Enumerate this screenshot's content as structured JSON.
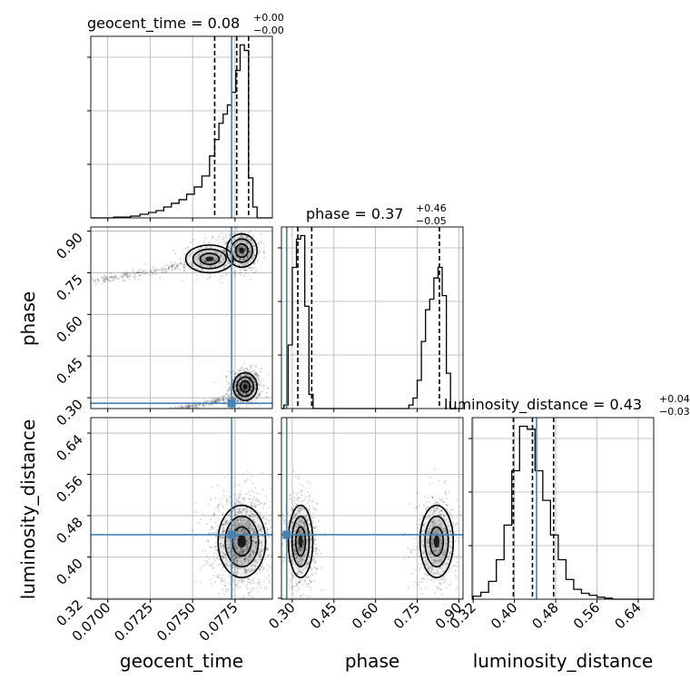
{
  "colors": {
    "truth": "#4682b4",
    "hist": "#000000",
    "quantile": "#000000",
    "grid": "#b0b0b0"
  },
  "chart_data": {
    "type": "corner",
    "parameters": [
      "geocent_time",
      "phase",
      "luminosity_distance"
    ],
    "titles": [
      {
        "label": "geocent_time = 0.08",
        "plus": "+0.00",
        "minus": "−0.00"
      },
      {
        "label": "phase = 0.37",
        "plus": "+0.46",
        "minus": "−0.05"
      },
      {
        "label": "luminosity_distance = 0.43",
        "plus": "+0.04",
        "minus": "−0.03"
      }
    ],
    "ranges": {
      "geocent_time": [
        0.069,
        0.0797
      ],
      "phase": [
        0.261,
        0.915
      ],
      "luminosity_distance": [
        0.318,
        0.67
      ]
    },
    "ticks": {
      "geocent_time": [
        {
          "value": 0.07,
          "label": "0.0700"
        },
        {
          "value": 0.0725,
          "label": "0.0725"
        },
        {
          "value": 0.075,
          "label": "0.0750"
        },
        {
          "value": 0.0775,
          "label": "0.0775"
        }
      ],
      "phase": [
        {
          "value": 0.3,
          "label": "0.30"
        },
        {
          "value": 0.45,
          "label": "0.45"
        },
        {
          "value": 0.6,
          "label": "0.60"
        },
        {
          "value": 0.75,
          "label": "0.75"
        },
        {
          "value": 0.9,
          "label": "0.90"
        }
      ],
      "luminosity_distance": [
        {
          "value": 0.32,
          "label": "0.32"
        },
        {
          "value": 0.4,
          "label": "0.40"
        },
        {
          "value": 0.48,
          "label": "0.48"
        },
        {
          "value": 0.56,
          "label": "0.56"
        },
        {
          "value": 0.64,
          "label": "0.64"
        }
      ]
    },
    "truths": {
      "geocent_time": 0.0773,
      "phase": 0.28,
      "luminosity_distance": 0.443
    },
    "quantiles": {
      "geocent_time": [
        0.0763,
        0.0776,
        0.0783
      ],
      "phase": [
        0.32,
        0.37,
        0.83
      ],
      "luminosity_distance": [
        0.398,
        0.435,
        0.476
      ]
    },
    "histograms": {
      "geocent_time": {
        "edges": [
          0.069,
          0.07035,
          0.07135,
          0.0719,
          0.0724,
          0.07285,
          0.0733,
          0.07375,
          0.0742,
          0.07465,
          0.0751,
          0.07555,
          0.076,
          0.0763,
          0.07655,
          0.0768,
          0.07705,
          0.0773,
          0.07755,
          0.0778,
          0.07805,
          0.0783,
          0.07855,
          0.0788,
          0.0797
        ],
        "counts": [
          0,
          2,
          5,
          10,
          15,
          20,
          30,
          40,
          50,
          65,
          85,
          115,
          170,
          215,
          260,
          285,
          310,
          345,
          405,
          475,
          460,
          110,
          30,
          0
        ]
      },
      "phase": {
        "edges": [
          0.261,
          0.27,
          0.285,
          0.3,
          0.315,
          0.33,
          0.345,
          0.36,
          0.375,
          0.39,
          0.72,
          0.735,
          0.75,
          0.765,
          0.78,
          0.795,
          0.81,
          0.825,
          0.84,
          0.855,
          0.87,
          0.915
        ],
        "counts": [
          0,
          5,
          90,
          200,
          240,
          245,
          145,
          20,
          0,
          0,
          5,
          15,
          40,
          95,
          140,
          155,
          185,
          200,
          160,
          50,
          0
        ]
      },
      "luminosity_distance": {
        "edges": [
          0.318,
          0.32,
          0.335,
          0.35,
          0.365,
          0.38,
          0.395,
          0.41,
          0.425,
          0.44,
          0.455,
          0.47,
          0.485,
          0.5,
          0.515,
          0.53,
          0.545,
          0.56,
          0.575,
          0.59,
          0.605,
          0.62,
          0.67
        ],
        "counts": [
          0,
          3,
          7,
          18,
          40,
          75,
          130,
          175,
          172,
          130,
          100,
          65,
          40,
          20,
          10,
          6,
          4,
          2,
          1,
          0,
          0,
          0
        ]
      }
    },
    "density_modes": {
      "phase_vs_geocent_time": [
        {
          "x": 0.0781,
          "y": 0.34,
          "sx": 0.00035,
          "sy": 0.025,
          "weight": 0.55
        },
        {
          "x": 0.0779,
          "y": 0.83,
          "sx": 0.00045,
          "sy": 0.03,
          "weight": 0.35
        },
        {
          "x": 0.076,
          "y": 0.8,
          "sx": 0.0007,
          "sy": 0.025,
          "weight": 0.1
        }
      ],
      "luminosity_distance_vs_geocent_time": [
        {
          "x": 0.0779,
          "y": 0.43,
          "sx": 0.0007,
          "sy": 0.035,
          "weight": 1.0
        }
      ],
      "luminosity_distance_vs_phase": [
        {
          "x": 0.33,
          "y": 0.43,
          "sx": 0.022,
          "sy": 0.035,
          "weight": 0.55
        },
        {
          "x": 0.82,
          "y": 0.43,
          "sx": 0.03,
          "sy": 0.035,
          "weight": 0.45
        }
      ]
    },
    "grid": true
  }
}
